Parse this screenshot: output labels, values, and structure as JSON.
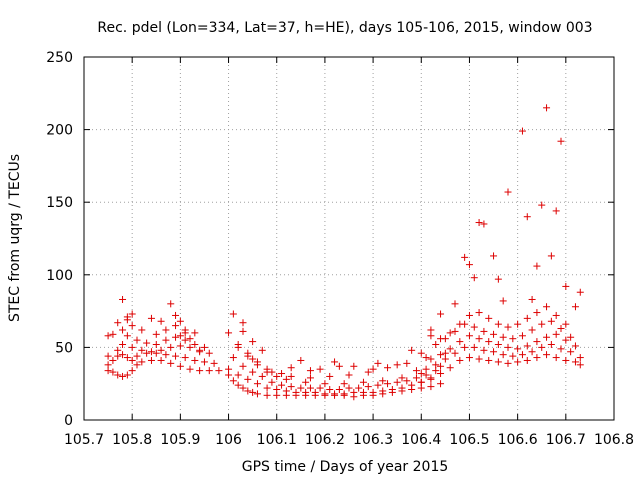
{
  "chart_data": {
    "type": "scatter",
    "title": "Rec. pdel (Lon=334, Lat=37, h=HE), days 105-106, 2015, window 003",
    "xlabel": "GPS time / Days of year 2015",
    "ylabel": "STEC from uqrg / TECUs",
    "xlim": [
      105.7,
      106.8
    ],
    "ylim": [
      0,
      250
    ],
    "xticks": [
      105.7,
      105.8,
      105.9,
      106,
      106.1,
      106.2,
      106.3,
      106.4,
      106.5,
      106.6,
      106.7,
      106.8
    ],
    "xtick_labels": [
      "105.7",
      "105.8",
      "105.9",
      "106",
      "106.1",
      "106.2",
      "106.3",
      "106.4",
      "106.5",
      "106.6",
      "106.7",
      "106.8"
    ],
    "yticks": [
      0,
      50,
      100,
      150,
      200,
      250
    ],
    "ytick_labels": [
      "0",
      "50",
      "100",
      "150",
      "200",
      "250"
    ],
    "grid": true,
    "legend": "none",
    "marker": "plus",
    "color": "#dd0000",
    "series": [
      {
        "x": [
          105.75,
          105.76,
          105.77,
          105.78,
          105.79,
          105.8,
          105.81,
          105.82,
          105.84,
          105.86,
          105.88,
          105.9,
          105.92,
          105.94,
          105.96,
          105.98,
          105.75,
          105.76,
          105.77,
          105.78,
          105.79,
          105.8,
          105.81,
          105.83,
          105.85,
          105.87,
          105.89,
          105.91,
          105.93,
          105.95,
          105.97,
          105.75,
          105.77,
          105.78,
          105.8,
          105.82,
          105.84,
          105.86,
          105.88,
          105.9,
          105.92,
          105.94,
          105.96,
          105.76,
          105.78,
          105.79,
          105.81,
          105.83,
          105.85,
          105.87,
          105.89,
          105.91,
          105.93,
          105.95,
          105.75,
          105.77,
          105.79,
          105.8,
          105.82,
          105.85,
          105.87,
          105.89,
          105.91,
          105.78,
          105.79,
          105.88,
          105.89,
          105.9,
          105.9,
          105.92,
          105.93,
          105.91,
          105.86,
          105.84,
          105.8,
          105.94,
          106.0,
          106.01,
          106.02,
          106.03,
          106.04,
          106.05,
          106.06,
          106.08,
          106.1,
          106.12,
          106.14,
          106.16,
          106.18,
          106.2,
          106.22,
          106.24,
          106.26,
          106.28,
          106.3,
          106.32,
          106.34,
          106.36,
          106.38,
          106.4,
          106.42,
          106.44,
          106.0,
          106.02,
          106.04,
          106.06,
          106.08,
          106.1,
          106.12,
          106.14,
          106.16,
          106.18,
          106.2,
          106.22,
          106.24,
          106.26,
          106.28,
          106.3,
          106.32,
          106.34,
          106.36,
          106.38,
          106.4,
          106.42,
          106.01,
          106.03,
          106.05,
          106.07,
          106.09,
          106.11,
          106.13,
          106.15,
          106.17,
          106.19,
          106.21,
          106.23,
          106.25,
          106.27,
          106.29,
          106.31,
          106.33,
          106.35,
          106.37,
          106.39,
          106.41,
          106.43,
          106.02,
          106.04,
          106.06,
          106.08,
          106.12,
          106.16,
          106.2,
          106.24,
          106.28,
          106.32,
          106.36,
          106.4,
          106.44,
          106.0,
          106.02,
          106.04,
          106.06,
          106.09,
          106.13,
          106.17,
          106.21,
          106.25,
          106.29,
          106.33,
          106.37,
          106.41,
          106.45,
          106.01,
          106.03,
          106.05,
          106.07,
          106.15,
          106.23,
          106.31,
          106.38,
          106.42,
          106.03,
          106.05,
          106.08,
          106.1,
          106.11,
          106.13,
          106.17,
          106.19,
          106.22,
          106.26,
          106.3,
          106.35,
          106.39,
          106.4,
          106.42,
          106.44,
          106.46,
          106.48,
          106.5,
          106.52,
          106.54,
          106.56,
          106.58,
          106.6,
          106.62,
          106.64,
          106.66,
          106.68,
          106.7,
          106.72,
          106.73,
          106.41,
          106.43,
          106.45,
          106.47,
          106.49,
          106.51,
          106.53,
          106.55,
          106.57,
          106.59,
          106.61,
          106.63,
          106.65,
          106.67,
          106.69,
          106.71,
          106.73,
          106.42,
          106.44,
          106.46,
          106.48,
          106.5,
          106.52,
          106.54,
          106.56,
          106.58,
          106.6,
          106.62,
          106.64,
          106.66,
          106.68,
          106.7,
          106.72,
          106.4,
          106.43,
          106.45,
          106.47,
          106.49,
          106.51,
          106.53,
          106.55,
          106.57,
          106.59,
          106.61,
          106.63,
          106.65,
          106.67,
          106.69,
          106.71,
          106.44,
          106.46,
          106.48,
          106.5,
          106.52,
          106.54,
          106.56,
          106.58,
          106.6,
          106.62,
          106.64,
          106.66,
          106.68,
          106.7,
          106.42,
          106.44,
          106.47,
          106.49,
          106.5,
          106.51,
          106.52,
          106.53,
          106.55,
          106.56,
          106.57,
          106.58,
          106.61,
          106.62,
          106.63,
          106.64,
          106.65,
          106.66,
          106.67,
          106.68,
          106.69,
          106.7,
          106.72,
          106.73
        ],
        "y": [
          34,
          33,
          31,
          30,
          31,
          34,
          38,
          40,
          41,
          41,
          39,
          37,
          35,
          34,
          34,
          34,
          38,
          41,
          44,
          45,
          43,
          41,
          44,
          46,
          46,
          45,
          44,
          43,
          41,
          40,
          39,
          44,
          48,
          52,
          50,
          48,
          47,
          48,
          50,
          51,
          50,
          48,
          46,
          59,
          62,
          58,
          55,
          53,
          52,
          55,
          57,
          55,
          52,
          50,
          58,
          67,
          69,
          65,
          62,
          59,
          62,
          65,
          62,
          83,
          71,
          80,
          72,
          68,
          58,
          56,
          60,
          60,
          68,
          70,
          73,
          47,
          31,
          27,
          24,
          22,
          20,
          19,
          18,
          17,
          17,
          17,
          17,
          17,
          17,
          17,
          17,
          17,
          16,
          17,
          17,
          18,
          19,
          20,
          21,
          22,
          23,
          25,
          35,
          31,
          28,
          25,
          22,
          21,
          20,
          19,
          19,
          19,
          18,
          18,
          18,
          19,
          19,
          19,
          20,
          21,
          22,
          24,
          26,
          28,
          43,
          37,
          33,
          30,
          26,
          24,
          23,
          22,
          22,
          22,
          21,
          21,
          22,
          22,
          23,
          24,
          25,
          26,
          27,
          29,
          31,
          34,
          50,
          44,
          38,
          33,
          28,
          26,
          25,
          25,
          26,
          27,
          29,
          32,
          37,
          60,
          52,
          46,
          40,
          33,
          30,
          29,
          30,
          31,
          33,
          36,
          39,
          43,
          46,
          73,
          61,
          54,
          48,
          41,
          37,
          39,
          48,
          58,
          67,
          42,
          35,
          30,
          32,
          36,
          34,
          35,
          40,
          37,
          35,
          38,
          34,
          26,
          29,
          32,
          36,
          41,
          43,
          42,
          41,
          40,
          39,
          40,
          41,
          43,
          45,
          43,
          41,
          40,
          38,
          35,
          38,
          42,
          46,
          50,
          50,
          48,
          47,
          45,
          44,
          45,
          47,
          50,
          52,
          49,
          47,
          43,
          42,
          45,
          49,
          54,
          58,
          56,
          54,
          52,
          50,
          49,
          51,
          54,
          57,
          59,
          55,
          51,
          46,
          52,
          56,
          61,
          66,
          64,
          61,
          59,
          57,
          56,
          58,
          62,
          66,
          68,
          63,
          57,
          56,
          60,
          66,
          72,
          74,
          70,
          66,
          64,
          66,
          70,
          74,
          78,
          72,
          66,
          62,
          73,
          80,
          112,
          107,
          98,
          136,
          135,
          113,
          97,
          82,
          157,
          199,
          140,
          83,
          106,
          148,
          215,
          113,
          144,
          192,
          92,
          78,
          88
        ]
      }
    ]
  }
}
